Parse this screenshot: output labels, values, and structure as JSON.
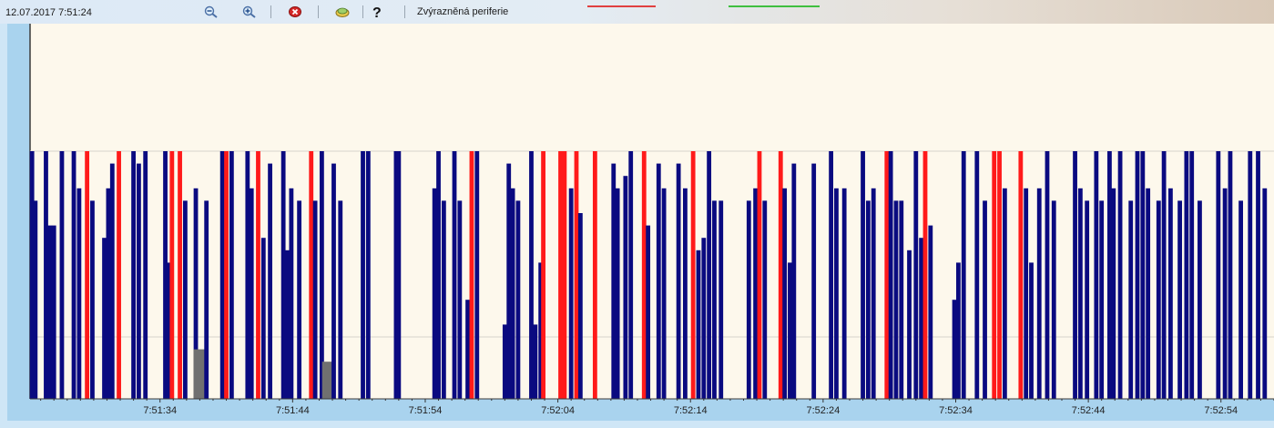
{
  "toolbar": {
    "datetime": "12.07.2017 7:51:24",
    "highlighted_label": "Zvýrazněná periferie",
    "buttons": [
      {
        "name": "zoom-out-button",
        "icon": "zoom-out-icon"
      },
      {
        "name": "zoom-in-button",
        "icon": "zoom-in-icon"
      },
      {
        "name": "delete-button",
        "icon": "close-icon"
      },
      {
        "name": "highlight-button",
        "icon": "highlighter-icon"
      },
      {
        "name": "help-button",
        "icon": "help-icon"
      }
    ],
    "colors": {
      "marker_red": "#e04040",
      "marker_green": "#3fbf3f"
    }
  },
  "chart_data": {
    "type": "bar",
    "x_ticks": [
      "7:51:34",
      "7:51:44",
      "7:51:54",
      "7:52:04",
      "7:52:14",
      "7:52:24",
      "7:52:34",
      "7:52:44",
      "7:52:54"
    ],
    "x_tick_seconds": [
      34,
      44,
      54,
      64,
      74,
      84,
      94,
      104,
      114
    ],
    "xlim_seconds": [
      24.2,
      118.0
    ],
    "ylim": [
      0,
      100
    ],
    "colors": {
      "normal": "#0a0a80",
      "highlighted": "#ff1a1a",
      "other": "#707070",
      "background": "#fdf8ec",
      "grid": "#d8d4cc"
    },
    "gridlines_y": [
      100,
      25
    ],
    "bars": [
      {
        "t": 24.35,
        "v": 100,
        "c": "n"
      },
      {
        "t": 24.6,
        "v": 80,
        "c": "n"
      },
      {
        "t": 25.4,
        "v": 100,
        "c": "n"
      },
      {
        "t": 25.7,
        "v": 70,
        "c": "n"
      },
      {
        "t": 26.0,
        "v": 70,
        "c": "n"
      },
      {
        "t": 26.6,
        "v": 100,
        "c": "n"
      },
      {
        "t": 27.5,
        "v": 100,
        "c": "n"
      },
      {
        "t": 27.9,
        "v": 85,
        "c": "n"
      },
      {
        "t": 28.5,
        "v": 100,
        "c": "h"
      },
      {
        "t": 28.9,
        "v": 80,
        "c": "n"
      },
      {
        "t": 29.8,
        "v": 65,
        "c": "n"
      },
      {
        "t": 30.1,
        "v": 85,
        "c": "n"
      },
      {
        "t": 30.4,
        "v": 95,
        "c": "n"
      },
      {
        "t": 30.9,
        "v": 100,
        "c": "h"
      },
      {
        "t": 32.0,
        "v": 100,
        "c": "n"
      },
      {
        "t": 32.4,
        "v": 95,
        "c": "n"
      },
      {
        "t": 32.9,
        "v": 100,
        "c": "n"
      },
      {
        "t": 34.4,
        "v": 100,
        "c": "n"
      },
      {
        "t": 34.6,
        "v": 55,
        "c": "n"
      },
      {
        "t": 34.9,
        "v": 100,
        "c": "h"
      },
      {
        "t": 35.5,
        "v": 100,
        "c": "h"
      },
      {
        "t": 35.9,
        "v": 80,
        "c": "n"
      },
      {
        "t": 36.7,
        "v": 85,
        "c": "n"
      },
      {
        "t": 37.0,
        "v": 20,
        "c": "o"
      },
      {
        "t": 37.5,
        "v": 80,
        "c": "n"
      },
      {
        "t": 38.7,
        "v": 100,
        "c": "n"
      },
      {
        "t": 39.0,
        "v": 100,
        "c": "h"
      },
      {
        "t": 39.4,
        "v": 100,
        "c": "n"
      },
      {
        "t": 40.6,
        "v": 100,
        "c": "n"
      },
      {
        "t": 40.9,
        "v": 85,
        "c": "n"
      },
      {
        "t": 41.4,
        "v": 100,
        "c": "h"
      },
      {
        "t": 41.8,
        "v": 65,
        "c": "n"
      },
      {
        "t": 42.3,
        "v": 95,
        "c": "n"
      },
      {
        "t": 43.3,
        "v": 100,
        "c": "n"
      },
      {
        "t": 43.6,
        "v": 60,
        "c": "n"
      },
      {
        "t": 43.9,
        "v": 85,
        "c": "n"
      },
      {
        "t": 44.5,
        "v": 80,
        "c": "n"
      },
      {
        "t": 45.4,
        "v": 100,
        "c": "h"
      },
      {
        "t": 45.7,
        "v": 80,
        "c": "n"
      },
      {
        "t": 46.2,
        "v": 100,
        "c": "n"
      },
      {
        "t": 46.7,
        "v": 15,
        "c": "o"
      },
      {
        "t": 47.1,
        "v": 95,
        "c": "n"
      },
      {
        "t": 47.6,
        "v": 80,
        "c": "n"
      },
      {
        "t": 49.3,
        "v": 100,
        "c": "n"
      },
      {
        "t": 49.7,
        "v": 100,
        "c": "n"
      },
      {
        "t": 51.8,
        "v": 100,
        "c": "n"
      },
      {
        "t": 52.0,
        "v": 100,
        "c": "n"
      },
      {
        "t": 54.7,
        "v": 85,
        "c": "n"
      },
      {
        "t": 55.0,
        "v": 100,
        "c": "n"
      },
      {
        "t": 55.4,
        "v": 80,
        "c": "n"
      },
      {
        "t": 56.2,
        "v": 100,
        "c": "n"
      },
      {
        "t": 56.6,
        "v": 80,
        "c": "n"
      },
      {
        "t": 57.2,
        "v": 40,
        "c": "n"
      },
      {
        "t": 57.5,
        "v": 100,
        "c": "h"
      },
      {
        "t": 57.9,
        "v": 100,
        "c": "n"
      },
      {
        "t": 60.0,
        "v": 30,
        "c": "n"
      },
      {
        "t": 60.3,
        "v": 95,
        "c": "n"
      },
      {
        "t": 60.6,
        "v": 85,
        "c": "n"
      },
      {
        "t": 61.0,
        "v": 80,
        "c": "n"
      },
      {
        "t": 62.0,
        "v": 100,
        "c": "n"
      },
      {
        "t": 62.3,
        "v": 30,
        "c": "n"
      },
      {
        "t": 62.7,
        "v": 55,
        "c": "n"
      },
      {
        "t": 62.9,
        "v": 100,
        "c": "h"
      },
      {
        "t": 64.2,
        "v": 100,
        "c": "h"
      },
      {
        "t": 64.5,
        "v": 100,
        "c": "h"
      },
      {
        "t": 65.0,
        "v": 85,
        "c": "n"
      },
      {
        "t": 65.4,
        "v": 100,
        "c": "h"
      },
      {
        "t": 65.7,
        "v": 75,
        "c": "n"
      },
      {
        "t": 66.8,
        "v": 100,
        "c": "h"
      },
      {
        "t": 68.2,
        "v": 95,
        "c": "n"
      },
      {
        "t": 68.5,
        "v": 85,
        "c": "n"
      },
      {
        "t": 69.1,
        "v": 90,
        "c": "n"
      },
      {
        "t": 69.5,
        "v": 100,
        "c": "n"
      },
      {
        "t": 70.5,
        "v": 100,
        "c": "h"
      },
      {
        "t": 70.8,
        "v": 70,
        "c": "n"
      },
      {
        "t": 71.6,
        "v": 95,
        "c": "n"
      },
      {
        "t": 72.0,
        "v": 85,
        "c": "n"
      },
      {
        "t": 73.1,
        "v": 95,
        "c": "n"
      },
      {
        "t": 73.6,
        "v": 85,
        "c": "n"
      },
      {
        "t": 74.2,
        "v": 100,
        "c": "h"
      },
      {
        "t": 74.6,
        "v": 60,
        "c": "n"
      },
      {
        "t": 75.0,
        "v": 65,
        "c": "n"
      },
      {
        "t": 75.4,
        "v": 100,
        "c": "n"
      },
      {
        "t": 75.8,
        "v": 80,
        "c": "n"
      },
      {
        "t": 76.3,
        "v": 80,
        "c": "n"
      },
      {
        "t": 78.4,
        "v": 80,
        "c": "n"
      },
      {
        "t": 78.9,
        "v": 85,
        "c": "n"
      },
      {
        "t": 79.2,
        "v": 100,
        "c": "h"
      },
      {
        "t": 79.6,
        "v": 80,
        "c": "n"
      },
      {
        "t": 80.8,
        "v": 100,
        "c": "h"
      },
      {
        "t": 81.1,
        "v": 85,
        "c": "n"
      },
      {
        "t": 81.5,
        "v": 55,
        "c": "n"
      },
      {
        "t": 81.8,
        "v": 95,
        "c": "n"
      },
      {
        "t": 83.3,
        "v": 95,
        "c": "n"
      },
      {
        "t": 84.6,
        "v": 100,
        "c": "n"
      },
      {
        "t": 85.0,
        "v": 85,
        "c": "n"
      },
      {
        "t": 85.6,
        "v": 85,
        "c": "n"
      },
      {
        "t": 87.0,
        "v": 100,
        "c": "n"
      },
      {
        "t": 87.4,
        "v": 80,
        "c": "n"
      },
      {
        "t": 87.8,
        "v": 85,
        "c": "n"
      },
      {
        "t": 88.8,
        "v": 100,
        "c": "h"
      },
      {
        "t": 89.1,
        "v": 100,
        "c": "n"
      },
      {
        "t": 89.5,
        "v": 80,
        "c": "n"
      },
      {
        "t": 89.9,
        "v": 80,
        "c": "n"
      },
      {
        "t": 90.5,
        "v": 60,
        "c": "n"
      },
      {
        "t": 91.0,
        "v": 100,
        "c": "n"
      },
      {
        "t": 91.4,
        "v": 65,
        "c": "n"
      },
      {
        "t": 91.7,
        "v": 100,
        "c": "h"
      },
      {
        "t": 92.1,
        "v": 70,
        "c": "n"
      },
      {
        "t": 93.9,
        "v": 40,
        "c": "n"
      },
      {
        "t": 94.2,
        "v": 55,
        "c": "n"
      },
      {
        "t": 94.6,
        "v": 100,
        "c": "n"
      },
      {
        "t": 95.6,
        "v": 100,
        "c": "n"
      },
      {
        "t": 96.2,
        "v": 80,
        "c": "n"
      },
      {
        "t": 96.9,
        "v": 100,
        "c": "h"
      },
      {
        "t": 97.3,
        "v": 100,
        "c": "h"
      },
      {
        "t": 97.7,
        "v": 85,
        "c": "n"
      },
      {
        "t": 98.9,
        "v": 100,
        "c": "h"
      },
      {
        "t": 99.3,
        "v": 85,
        "c": "n"
      },
      {
        "t": 99.7,
        "v": 55,
        "c": "n"
      },
      {
        "t": 100.3,
        "v": 85,
        "c": "n"
      },
      {
        "t": 100.9,
        "v": 100,
        "c": "n"
      },
      {
        "t": 101.4,
        "v": 80,
        "c": "n"
      },
      {
        "t": 103.0,
        "v": 100,
        "c": "n"
      },
      {
        "t": 103.4,
        "v": 85,
        "c": "n"
      },
      {
        "t": 103.9,
        "v": 80,
        "c": "n"
      },
      {
        "t": 104.6,
        "v": 100,
        "c": "n"
      },
      {
        "t": 105.0,
        "v": 80,
        "c": "n"
      },
      {
        "t": 105.6,
        "v": 100,
        "c": "n"
      },
      {
        "t": 105.9,
        "v": 85,
        "c": "n"
      },
      {
        "t": 106.4,
        "v": 100,
        "c": "n"
      },
      {
        "t": 107.2,
        "v": 80,
        "c": "n"
      },
      {
        "t": 107.7,
        "v": 100,
        "c": "n"
      },
      {
        "t": 108.1,
        "v": 100,
        "c": "n"
      },
      {
        "t": 108.5,
        "v": 85,
        "c": "n"
      },
      {
        "t": 109.3,
        "v": 80,
        "c": "n"
      },
      {
        "t": 109.7,
        "v": 100,
        "c": "n"
      },
      {
        "t": 110.2,
        "v": 85,
        "c": "n"
      },
      {
        "t": 110.9,
        "v": 80,
        "c": "n"
      },
      {
        "t": 111.4,
        "v": 100,
        "c": "n"
      },
      {
        "t": 111.8,
        "v": 100,
        "c": "n"
      },
      {
        "t": 112.4,
        "v": 80,
        "c": "n"
      },
      {
        "t": 113.8,
        "v": 100,
        "c": "n"
      },
      {
        "t": 114.3,
        "v": 85,
        "c": "n"
      },
      {
        "t": 114.7,
        "v": 100,
        "c": "n"
      },
      {
        "t": 115.5,
        "v": 80,
        "c": "n"
      },
      {
        "t": 116.2,
        "v": 100,
        "c": "n"
      },
      {
        "t": 116.8,
        "v": 100,
        "c": "n"
      },
      {
        "t": 117.3,
        "v": 85,
        "c": "n"
      }
    ]
  }
}
